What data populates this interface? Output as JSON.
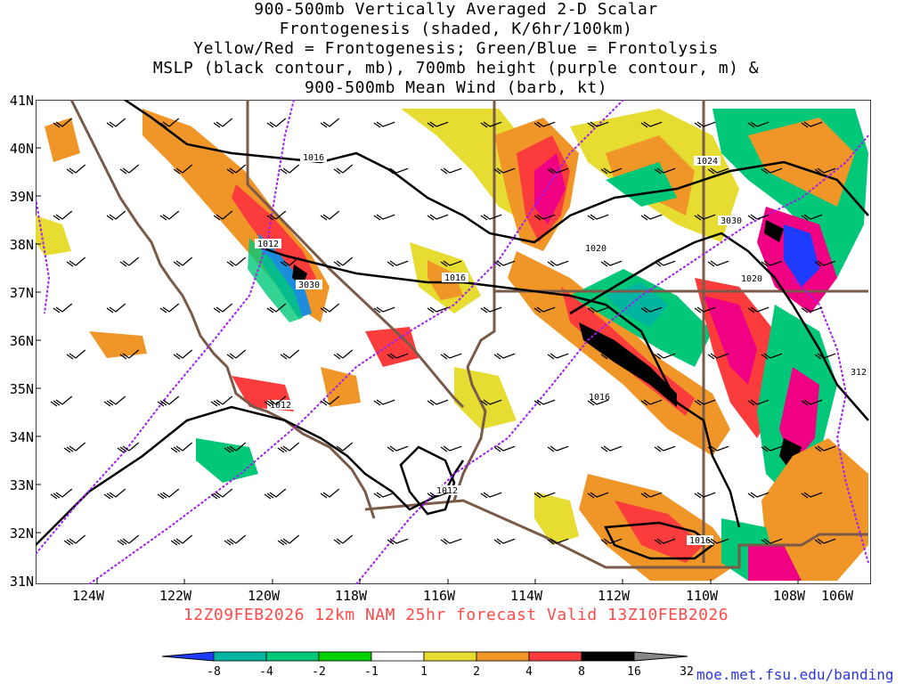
{
  "title": {
    "line1": "900-500mb Vertically Averaged 2-D Scalar",
    "line2": "Frontogenesis (shaded, K/6hr/100km)",
    "line3": "Yellow/Red = Frontogenesis;  Green/Blue = Frontolysis",
    "line4": "MSLP (black contour, mb), 700mb height (purple contour, m) &",
    "line5": "900-500mb Mean Wind (barb, kt)"
  },
  "forecast_label": "12Z09FEB2026 12km NAM 25hr forecast Valid 13Z10FEB2026",
  "credit": "moe.met.fsu.edu/banding",
  "lat_labels": [
    "41N",
    "40N",
    "39N",
    "38N",
    "37N",
    "36N",
    "35N",
    "34N",
    "33N",
    "32N",
    "31N"
  ],
  "lon_labels": [
    "124W",
    "122W",
    "120W",
    "118W",
    "116W",
    "114W",
    "112W",
    "110W",
    "108W",
    "106W"
  ],
  "contour_labels": {
    "mslp": [
      "1016",
      "1024",
      "1012",
      "1016",
      "1020",
      "1020",
      "1016",
      "1012",
      "1012",
      "1016",
      "312"
    ],
    "height": [
      "3030",
      "3030"
    ]
  },
  "colorbar": {
    "ticks": [
      "-8",
      "-4",
      "-2",
      "-1",
      "1",
      "2",
      "4",
      "8",
      "16",
      "32"
    ],
    "colors": [
      "#1e3cff",
      "#00b4a0",
      "#00c878",
      "#00d200",
      "#ffffff",
      "#e6dc32",
      "#f09628",
      "#fa3c3c",
      "#f00082",
      "#000000"
    ]
  },
  "colors": {
    "mslp_contour": "#000000",
    "height_contour": "#a020f0",
    "borders": "#7a5a48",
    "subtitle": "#ff4a4a",
    "credit": "#2a38d8"
  }
}
